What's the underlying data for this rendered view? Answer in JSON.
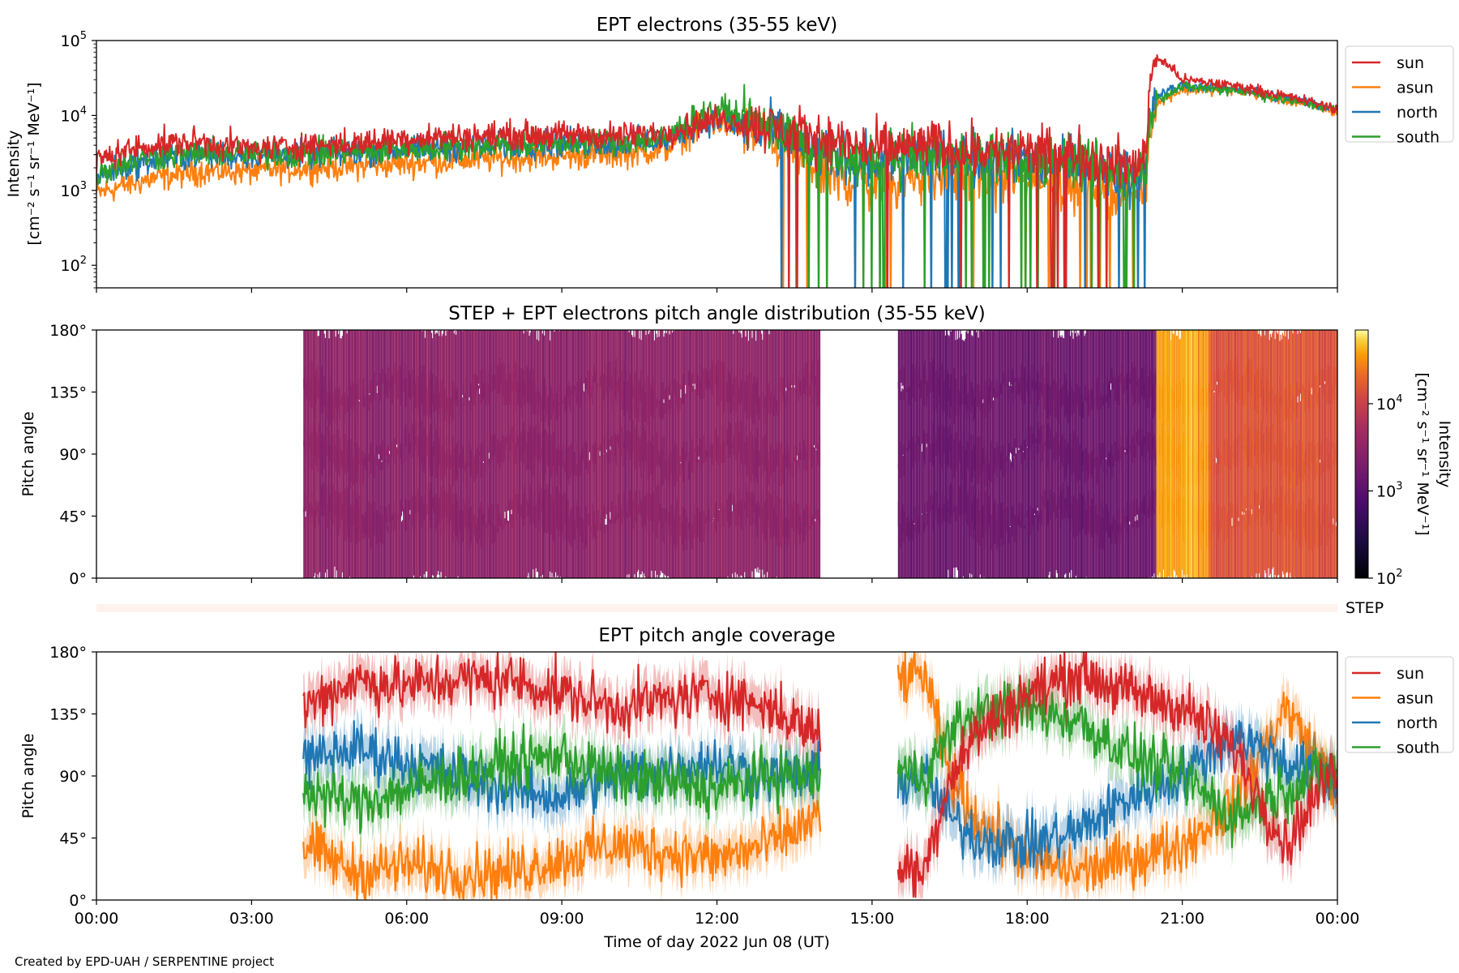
{
  "footer": "Created by EPD-UAH / SERPENTINE project",
  "chart_data": [
    {
      "type": "line",
      "title": "EPT electrons (35-55 keV)",
      "ylabel_line1": "Intensity",
      "ylabel_line2": "[cm⁻² s⁻¹ sr⁻¹ MeV⁻¹]",
      "yscale": "log",
      "ylim": [
        50,
        100000
      ],
      "yticks": [
        {
          "value": 100,
          "base": "10",
          "exp": "2"
        },
        {
          "value": 1000,
          "base": "10",
          "exp": "3"
        },
        {
          "value": 10000,
          "base": "10",
          "exp": "4"
        },
        {
          "value": 100000,
          "base": "10",
          "exp": "5"
        }
      ],
      "xlim_hours": [
        0,
        24
      ],
      "legend": "outside-right",
      "series": [
        {
          "name": "sun",
          "color": "#d62728",
          "x_hours": [
            0,
            1,
            2,
            3,
            4,
            5,
            6,
            7,
            8,
            9,
            10,
            11,
            12,
            13,
            14,
            15,
            16,
            17,
            18,
            19,
            20,
            20.3,
            20.5,
            21,
            22,
            23,
            24
          ],
          "values": [
            2500,
            4000,
            4500,
            3500,
            4000,
            4200,
            5000,
            5200,
            5500,
            5500,
            5300,
            5800,
            9000,
            7000,
            5000,
            3500,
            4000,
            3500,
            3300,
            3000,
            2000,
            3000,
            60000,
            30000,
            25000,
            18000,
            12000
          ]
        },
        {
          "name": "asun",
          "color": "#ff7f0e",
          "x_hours": [
            0,
            1,
            2,
            3,
            4,
            5,
            6,
            7,
            8,
            9,
            10,
            11,
            12,
            13,
            14,
            15,
            16,
            17,
            18,
            19,
            20,
            20.3,
            20.5,
            21,
            22,
            23,
            24
          ],
          "values": [
            900,
            1400,
            1800,
            1800,
            2000,
            2100,
            2300,
            2500,
            2700,
            2900,
            3000,
            3500,
            8000,
            5000,
            1500,
            1200,
            1500,
            1500,
            1300,
            1200,
            900,
            1200,
            14000,
            22000,
            22000,
            16000,
            11000
          ]
        },
        {
          "name": "north",
          "color": "#1f77b4",
          "x_hours": [
            0,
            1,
            2,
            3,
            4,
            5,
            6,
            7,
            8,
            9,
            10,
            11,
            12,
            13,
            14,
            15,
            16,
            17,
            18,
            19,
            20,
            20.3,
            20.5,
            21,
            22,
            23,
            24
          ],
          "values": [
            1500,
            2500,
            3000,
            3000,
            3000,
            3200,
            3500,
            3800,
            4000,
            4200,
            4300,
            4600,
            9000,
            6000,
            3000,
            2500,
            3000,
            2800,
            2500,
            2200,
            1500,
            2000,
            18000,
            25000,
            23000,
            17000,
            12000
          ]
        },
        {
          "name": "south",
          "color": "#2ca02c",
          "x_hours": [
            0,
            1,
            2,
            3,
            4,
            5,
            6,
            7,
            8,
            9,
            10,
            11,
            12,
            13,
            14,
            15,
            16,
            17,
            18,
            19,
            20,
            20.3,
            20.5,
            21,
            22,
            23,
            24
          ],
          "values": [
            1700,
            2800,
            3200,
            3000,
            3100,
            3300,
            3600,
            3900,
            4100,
            4300,
            4500,
            4800,
            12000,
            6500,
            3000,
            2500,
            3000,
            2800,
            2500,
            2200,
            1500,
            2000,
            16000,
            24000,
            22000,
            16000,
            12000
          ]
        }
      ]
    },
    {
      "type": "heatmap",
      "title": "STEP + EPT electrons pitch angle distribution (35-55 keV)",
      "ylabel": "Pitch angle",
      "ylim": [
        0,
        180
      ],
      "yticks": [
        "0°",
        "45°",
        "90°",
        "135°",
        "180°"
      ],
      "xlim_hours": [
        0,
        24
      ],
      "coverage_hours": [
        [
          4.0,
          14.0
        ],
        [
          15.5,
          24.0
        ]
      ],
      "intensity_segments": [
        {
          "x_hours": [
            4.0,
            14.0
          ],
          "value": 3000
        },
        {
          "x_hours": [
            15.5,
            20.5
          ],
          "value": 1500
        },
        {
          "x_hours": [
            20.5,
            21.5
          ],
          "value": 40000
        },
        {
          "x_hours": [
            21.5,
            24.0
          ],
          "value": 15000
        }
      ],
      "colorbar": {
        "label": "Intensity",
        "unit": "[cm⁻² s⁻¹ sr⁻¹ MeV⁻¹]",
        "scale": "log",
        "range": [
          100,
          70000
        ],
        "ticks": [
          {
            "value": 100,
            "base": "10",
            "exp": "2"
          },
          {
            "value": 1000,
            "base": "10",
            "exp": "3"
          },
          {
            "value": 10000,
            "base": "10",
            "exp": "4"
          }
        ]
      },
      "step_label": "STEP"
    },
    {
      "type": "line",
      "title": "EPT pitch angle coverage",
      "ylabel": "Pitch angle",
      "xlabel": "Time of day 2022 Jun 08 (UT)",
      "ylim": [
        0,
        180
      ],
      "yticks": [
        "0°",
        "45°",
        "90°",
        "135°",
        "180°"
      ],
      "xlim_hours": [
        0,
        24
      ],
      "xticks": [
        "00:00",
        "03:00",
        "06:00",
        "09:00",
        "12:00",
        "15:00",
        "18:00",
        "21:00",
        "00:00"
      ],
      "legend": "outside-right",
      "series": [
        {
          "name": "sun",
          "color": "#d62728",
          "x_hours": [
            4.0,
            5,
            6,
            7,
            8,
            9,
            10,
            11,
            12,
            13,
            14.0,
            null,
            15.5,
            16,
            16.5,
            17,
            18,
            19,
            20,
            21,
            22,
            23,
            24
          ],
          "values": [
            140,
            160,
            155,
            160,
            160,
            150,
            140,
            145,
            150,
            140,
            120,
            null,
            25,
            20,
            90,
            120,
            150,
            165,
            150,
            140,
            110,
            40,
            100
          ]
        },
        {
          "name": "asun",
          "color": "#ff7f0e",
          "x_hours": [
            4.0,
            5,
            6,
            7,
            8,
            9,
            10,
            11,
            12,
            13,
            14.0,
            null,
            15.5,
            16,
            16.5,
            17,
            18,
            19,
            20,
            21,
            22,
            23,
            24
          ],
          "values": [
            40,
            20,
            25,
            20,
            20,
            30,
            40,
            35,
            30,
            40,
            60,
            null,
            160,
            165,
            90,
            60,
            30,
            20,
            30,
            40,
            70,
            140,
            80
          ]
        },
        {
          "name": "north",
          "color": "#1f77b4",
          "x_hours": [
            4.0,
            5,
            6,
            7,
            8,
            9,
            10,
            11,
            12,
            13,
            14.0,
            null,
            15.5,
            16,
            16.5,
            17,
            18,
            19,
            20,
            21,
            22,
            23,
            24
          ],
          "values": [
            100,
            110,
            100,
            90,
            80,
            75,
            90,
            95,
            100,
            90,
            90,
            null,
            85,
            90,
            60,
            45,
            40,
            50,
            75,
            90,
            120,
            100,
            85
          ]
        },
        {
          "name": "south",
          "color": "#2ca02c",
          "x_hours": [
            4.0,
            5,
            6,
            7,
            8,
            9,
            10,
            11,
            12,
            13,
            14.0,
            null,
            15.5,
            16,
            16.5,
            17,
            18,
            19,
            20,
            21,
            22,
            23,
            24
          ],
          "values": [
            80,
            70,
            80,
            90,
            100,
            105,
            90,
            85,
            80,
            90,
            90,
            null,
            95,
            90,
            120,
            135,
            140,
            130,
            105,
            90,
            60,
            80,
            95
          ]
        }
      ]
    }
  ]
}
